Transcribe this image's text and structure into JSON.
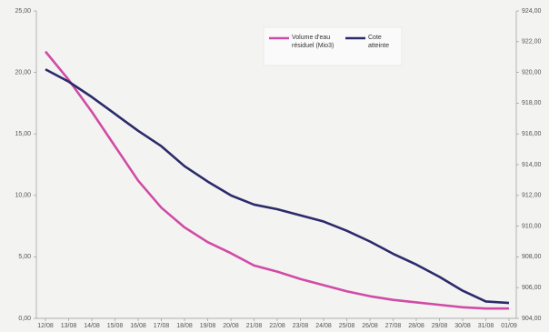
{
  "chart_data": {
    "type": "line",
    "categories": [
      "12/08",
      "13/08",
      "14/08",
      "15/08",
      "16/08",
      "17/08",
      "18/08",
      "19/08",
      "20/08",
      "21/08",
      "22/08",
      "23/08",
      "24/08",
      "25/08",
      "26/08",
      "27/08",
      "28/08",
      "29/08",
      "30/08",
      "31/08",
      "01/09"
    ],
    "series": [
      {
        "name": "Volume d'eau résiduel (Mio3)",
        "color": "#d14ba6",
        "values": [
          21.7,
          19.4,
          16.8,
          14.0,
          11.2,
          9.0,
          7.4,
          6.2,
          5.3,
          4.3,
          3.8,
          3.2,
          2.7,
          2.2,
          1.8,
          1.5,
          1.3,
          1.1,
          0.9,
          0.8,
          0.8
        ]
      },
      {
        "name": "Cote atteinte",
        "color": "#2b2a6b",
        "axis": "y2",
        "values": [
          920.2,
          919.4,
          918.4,
          917.3,
          916.2,
          915.2,
          913.9,
          912.9,
          912.0,
          911.4,
          911.1,
          910.7,
          910.3,
          909.7,
          909.0,
          908.2,
          907.5,
          906.7,
          905.8,
          905.1,
          905.0
        ]
      }
    ],
    "ylim": [
      0,
      25
    ],
    "yticks": [
      {
        "value": 0,
        "label": "0,00"
      },
      {
        "value": 5,
        "label": "5,00"
      },
      {
        "value": 10,
        "label": "10,00"
      },
      {
        "value": 15,
        "label": "15,00"
      },
      {
        "value": 20,
        "label": "20,00"
      },
      {
        "value": 25,
        "label": "25,00"
      }
    ],
    "y2lim": [
      904,
      924
    ],
    "y2ticks": [
      {
        "value": 904,
        "label": "904,00"
      },
      {
        "value": 906,
        "label": "906,00"
      },
      {
        "value": 908,
        "label": "908,00"
      },
      {
        "value": 910,
        "label": "910,00"
      },
      {
        "value": 912,
        "label": "912,00"
      },
      {
        "value": 914,
        "label": "914,00"
      },
      {
        "value": 916,
        "label": "916,00"
      },
      {
        "value": 918,
        "label": "918,00"
      },
      {
        "value": 920,
        "label": "920,00"
      },
      {
        "value": 922,
        "label": "922,00"
      },
      {
        "value": 924,
        "label": "924,00"
      }
    ],
    "legend": "top"
  }
}
